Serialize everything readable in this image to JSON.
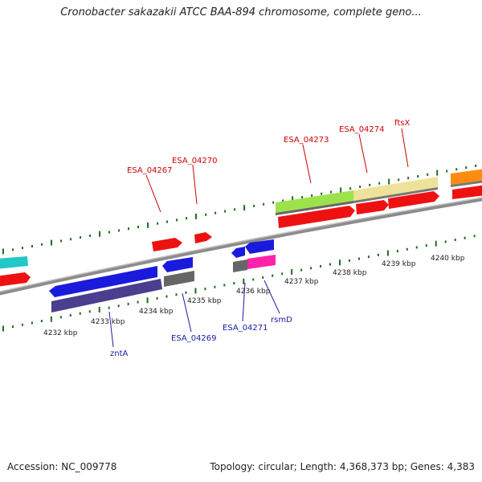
{
  "title": "Cronobacter sakazakii ATCC BAA-894 chromosome, complete geno...",
  "footer": {
    "accession": "Accession: NC_009778",
    "summary": "Topology: circular; Length: 4,368,373 bp; Genes: 4,383"
  },
  "kbp_labels": [
    "4232 kbp",
    "4233 kbp",
    "4234 kbp",
    "4235 kbp",
    "4236 kbp",
    "4237 kbp",
    "4238 kbp",
    "4239 kbp",
    "4240 kbp"
  ],
  "upper_labels": [
    "ESA_04267",
    "ESA_04270",
    "ESA_04273",
    "ESA_04274",
    "ftsX"
  ],
  "lower_labels": [
    "zntA",
    "ESA_04269",
    "ESA_04271",
    "rsmD"
  ],
  "colors": {
    "upper_label": "#cc0000",
    "lower_label": "#1a1aa6",
    "tick": "#1e6b1e",
    "backbone": "#8c8c8c"
  }
}
